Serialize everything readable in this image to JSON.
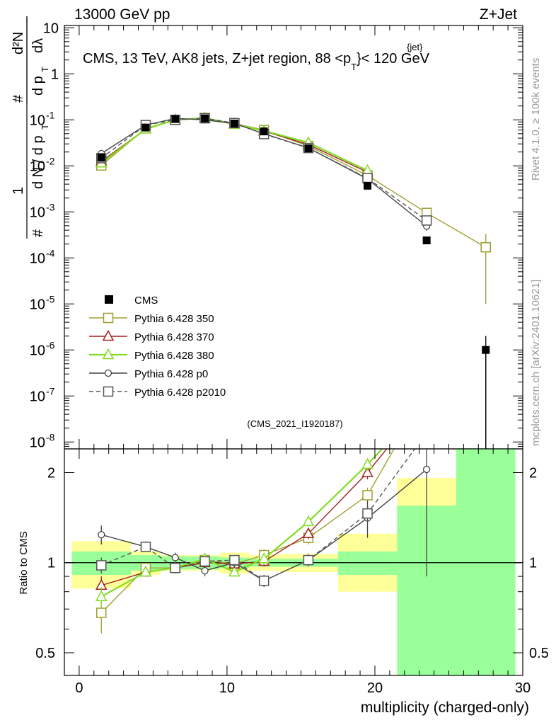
{
  "header": {
    "left": "13000 GeV pp",
    "right": "Z+Jet"
  },
  "side_labels": {
    "rivet": "Rivet 4.1.0, ≥ 100k events",
    "mcplots": "mcplots.cern.ch [arXiv:2401.10621]"
  },
  "chart_data": [
    {
      "type": "line",
      "title": "CMS, 13 TeV, AK8 jets, Z+jet region, 88 <p",
      "title_sup": "{jet}",
      "title_sub": "T",
      "title_end": "}< 120 GeV",
      "ylabel": "1/dN/dpT # d²N/dpT dλ",
      "xlim": [
        -1,
        30
      ],
      "ylim": [
        1e-08,
        10
      ],
      "yscale": "log",
      "y_ticks": [
        {
          "label": "10",
          "exp": "-8"
        },
        {
          "label": "10",
          "exp": "-7"
        },
        {
          "label": "10",
          "exp": "-6"
        },
        {
          "label": "10",
          "exp": "-5"
        },
        {
          "label": "10",
          "exp": "-4"
        },
        {
          "label": "10",
          "exp": "-3"
        },
        {
          "label": "10",
          "exp": "-2"
        },
        {
          "label": "10",
          "exp": "-1"
        },
        {
          "label": "1",
          "exp": ""
        },
        {
          "label": "10",
          "exp": ""
        }
      ],
      "watermark": "(CMS_2021_I1920187)",
      "data": {
        "name": "CMS",
        "x": [
          1.5,
          4.5,
          6.5,
          8.5,
          10.5,
          12.5,
          15.5,
          19.5,
          23.5,
          27.5
        ],
        "y": [
          0.015,
          0.068,
          0.104,
          0.107,
          0.083,
          0.056,
          0.024,
          0.0037,
          0.00024,
          1e-06
        ],
        "err": [
          0.002,
          0.006,
          0.006,
          0.006,
          0.005,
          0.004,
          0.002,
          0.0005,
          4e-05,
          1e-06
        ]
      },
      "series": [
        {
          "name": "Pythia 6.428 350",
          "color": "#a0a030",
          "marker": "square-open",
          "dash": false,
          "x": [
            1.5,
            4.5,
            6.5,
            8.5,
            10.5,
            12.5,
            15.5,
            19.5,
            23.5,
            27.5
          ],
          "y": [
            0.0102,
            0.065,
            0.1,
            0.11,
            0.083,
            0.06,
            0.027,
            0.0062,
            0.00095,
            0.00017
          ],
          "err": [
            0.0012,
            0.004,
            0.005,
            0.005,
            0.004,
            0.004,
            0.002,
            0.0006,
            0.00025,
            0.00016
          ]
        },
        {
          "name": "Pythia 6.428 370",
          "color": "#a02020",
          "marker": "triangle-open",
          "dash": false,
          "x": [
            1.5,
            4.5,
            6.5,
            8.5,
            10.5,
            12.5,
            15.5,
            19.5
          ],
          "y": [
            0.0125,
            0.063,
            0.1,
            0.107,
            0.082,
            0.057,
            0.029,
            0.0073
          ],
          "err": [
            0.001,
            0.003,
            0.004,
            0.004,
            0.003,
            0.003,
            0.002,
            0.0005
          ]
        },
        {
          "name": "Pythia 6.428 380",
          "color": "#80dd20",
          "marker": "triangle-open",
          "dash": false,
          "x": [
            1.5,
            4.5,
            6.5,
            8.5,
            10.5,
            12.5,
            15.5,
            19.5
          ],
          "y": [
            0.0115,
            0.063,
            0.1,
            0.11,
            0.08,
            0.058,
            0.032,
            0.0079
          ],
          "err": [
            0.001,
            0.003,
            0.004,
            0.004,
            0.003,
            0.003,
            0.002,
            0.0005
          ]
        },
        {
          "name": "Pythia 6.428 p0",
          "color": "#444444",
          "marker": "circle-open",
          "dash": false,
          "x": [
            1.5,
            4.5,
            6.5,
            8.5,
            10.5,
            12.5,
            15.5,
            19.5,
            23.5
          ],
          "y": [
            0.0185,
            0.077,
            0.107,
            0.1,
            0.083,
            0.05,
            0.0245,
            0.0052,
            0.00049
          ],
          "err": [
            0.0015,
            0.004,
            0.005,
            0.005,
            0.004,
            0.003,
            0.002,
            0.0005,
            0.0001
          ]
        },
        {
          "name": "Pythia 6.428 p2010",
          "color": "#555555",
          "marker": "square-open",
          "dash": true,
          "x": [
            1.5,
            4.5,
            6.5,
            8.5,
            10.5,
            12.5,
            15.5,
            19.5,
            23.5
          ],
          "y": [
            0.0147,
            0.077,
            0.1,
            0.108,
            0.085,
            0.049,
            0.0244,
            0.0054,
            0.00065
          ],
          "err": [
            0.001,
            0.003,
            0.004,
            0.004,
            0.003,
            0.003,
            0.002,
            0.0005,
            0.00012
          ]
        }
      ]
    },
    {
      "type": "line",
      "ylabel": "Ratio to CMS",
      "xlabel": "multiplicity (charged-only)",
      "xlim": [
        -1,
        30
      ],
      "ylim": [
        0.42,
        2.4
      ],
      "yscale": "log",
      "x_ticks": [
        "0",
        "10",
        "20",
        "30"
      ],
      "y_ticks": [
        "0.5",
        "1",
        "2"
      ],
      "bands": [
        {
          "x0": -0.5,
          "x1": 3.5,
          "green": [
            0.91,
            1.09
          ],
          "yellow": [
            0.82,
            1.18
          ]
        },
        {
          "x0": 3.5,
          "x1": 5.5,
          "green": [
            0.94,
            1.06
          ],
          "yellow": [
            0.91,
            1.09
          ]
        },
        {
          "x0": 5.5,
          "x1": 7.5,
          "green": [
            0.95,
            1.05
          ],
          "yellow": [
            0.94,
            1.06
          ]
        },
        {
          "x0": 7.5,
          "x1": 9.5,
          "green": [
            0.95,
            1.05
          ],
          "yellow": [
            0.94,
            1.06
          ]
        },
        {
          "x0": 9.5,
          "x1": 11.5,
          "green": [
            0.96,
            1.04
          ],
          "yellow": [
            0.92,
            1.08
          ]
        },
        {
          "x0": 11.5,
          "x1": 13.5,
          "green": [
            0.97,
            1.03
          ],
          "yellow": [
            0.94,
            1.06
          ]
        },
        {
          "x0": 13.5,
          "x1": 17.5,
          "green": [
            0.97,
            1.03
          ],
          "yellow": [
            0.93,
            1.07
          ]
        },
        {
          "x0": 17.5,
          "x1": 21.5,
          "green": [
            0.91,
            1.09
          ],
          "yellow": [
            0.8,
            1.25
          ]
        },
        {
          "x0": 21.5,
          "x1": 25.5,
          "green": [
            0.42,
            1.55
          ],
          "yellow": [
            0.42,
            1.92
          ]
        },
        {
          "x0": 25.5,
          "x1": 29.5,
          "green": [
            0.42,
            2.4
          ],
          "yellow": [
            0.42,
            2.4
          ]
        }
      ],
      "series": [
        {
          "name": "Pythia 6.428 350",
          "x": [
            1.5,
            4.5,
            6.5,
            8.5,
            10.5,
            12.5,
            15.5,
            19.5,
            21.3
          ],
          "y": [
            0.68,
            0.96,
            0.96,
            1.02,
            0.99,
            1.06,
            1.21,
            1.68,
            2.4
          ],
          "err": [
            0.1,
            0.04,
            0.04,
            0.04,
            0.04,
            0.05,
            0.06,
            0.1,
            0
          ]
        },
        {
          "name": "Pythia 6.428 370",
          "x": [
            1.5,
            4.5,
            6.5,
            8.5,
            10.5,
            12.5,
            15.5,
            19.5,
            20.8
          ],
          "y": [
            0.84,
            0.93,
            0.96,
            1.0,
            0.99,
            1.01,
            1.25,
            2.0,
            2.4
          ],
          "err": [
            0.06,
            0.03,
            0.03,
            0.03,
            0.03,
            0.04,
            0.05,
            0.1,
            0
          ]
        },
        {
          "name": "Pythia 6.428 380",
          "x": [
            1.5,
            4.5,
            6.5,
            8.5,
            10.5,
            12.5,
            15.5,
            19.5,
            20.5
          ],
          "y": [
            0.77,
            0.93,
            0.96,
            1.03,
            0.93,
            1.03,
            1.37,
            2.13,
            2.4
          ],
          "err": [
            0.06,
            0.03,
            0.03,
            0.03,
            0.03,
            0.04,
            0.05,
            0.1,
            0
          ]
        },
        {
          "name": "Pythia 6.428 p0",
          "x": [
            1.5,
            4.5,
            6.5,
            8.5,
            10.5,
            12.5,
            15.5,
            19.5,
            23.5
          ],
          "y": [
            1.24,
            1.13,
            1.04,
            0.94,
            1.0,
            0.87,
            1.02,
            1.41,
            2.05
          ],
          "err": [
            0.09,
            0.04,
            0.04,
            0.04,
            0.04,
            0.04,
            0.05,
            0.2,
            1.15
          ]
        },
        {
          "name": "Pythia 6.428 p2010",
          "x": [
            1.5,
            4.5,
            6.5,
            8.5,
            10.5,
            12.5,
            15.5,
            19.5,
            22.7
          ],
          "y": [
            0.98,
            1.13,
            0.96,
            1.01,
            1.02,
            0.87,
            1.02,
            1.46,
            2.4
          ],
          "err": [
            0.06,
            0.03,
            0.03,
            0.03,
            0.03,
            0.04,
            0.05,
            0.1,
            0
          ]
        }
      ]
    }
  ]
}
